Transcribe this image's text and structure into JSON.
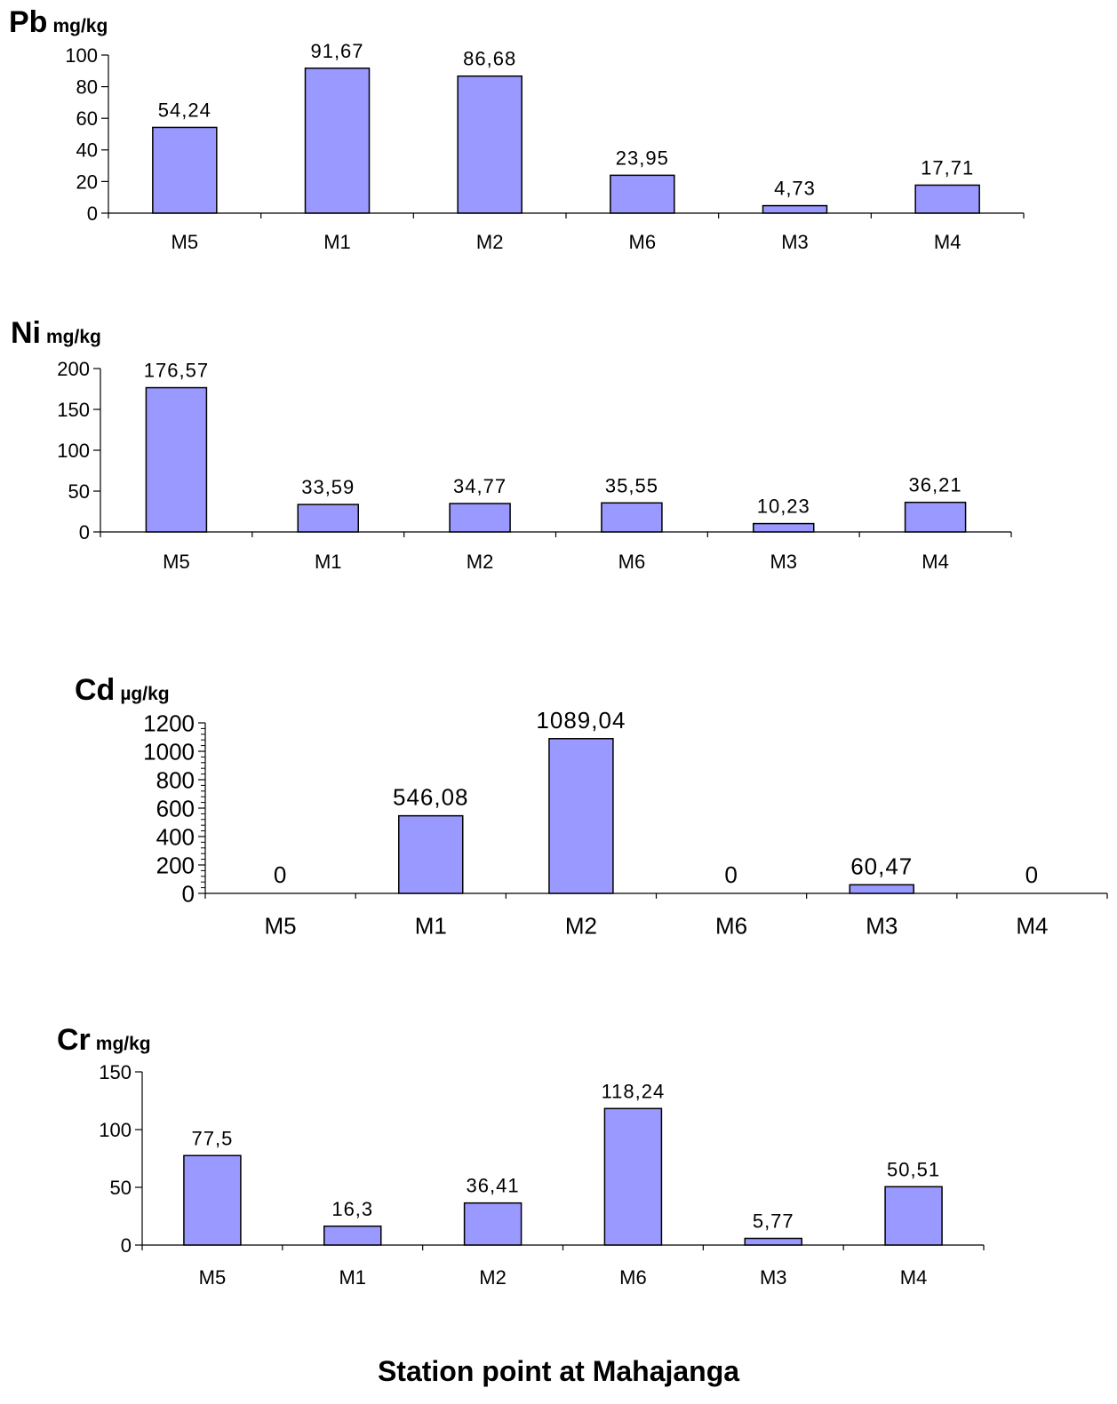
{
  "chart_data": [
    {
      "type": "bar",
      "element": "Pb",
      "unit": "mg/kg",
      "categories": [
        "M5",
        "M1",
        "M2",
        "M6",
        "M3",
        "M4"
      ],
      "values": [
        54.24,
        91.67,
        86.68,
        23.95,
        4.73,
        17.71
      ],
      "value_labels": [
        "54,24",
        "91,67",
        "86,68",
        "23,95",
        "4,73",
        "17,71"
      ],
      "yticks": [
        0,
        20,
        40,
        60,
        80,
        100
      ],
      "ylim": [
        0,
        100
      ],
      "bar_color": "#9999ff"
    },
    {
      "type": "bar",
      "element": "Ni",
      "unit": "mg/kg",
      "categories": [
        "M5",
        "M1",
        "M2",
        "M6",
        "M3",
        "M4"
      ],
      "values": [
        176.57,
        33.59,
        34.77,
        35.55,
        10.23,
        36.21
      ],
      "value_labels": [
        "176,57",
        "33,59",
        "34,77",
        "35,55",
        "10,23",
        "36,21"
      ],
      "yticks": [
        0,
        50,
        100,
        150,
        200
      ],
      "ylim": [
        0,
        200
      ],
      "bar_color": "#9999ff"
    },
    {
      "type": "bar",
      "element": "Cd",
      "unit": "µg/kg",
      "categories": [
        "M5",
        "M1",
        "M2",
        "M6",
        "M3",
        "M4"
      ],
      "values": [
        0,
        546.08,
        1089.04,
        0,
        60.47,
        0
      ],
      "value_labels": [
        "0",
        "546,08",
        "1089,04",
        "0",
        "60,47",
        "0"
      ],
      "yticks": [
        0,
        200,
        400,
        600,
        800,
        1000,
        1200
      ],
      "ylim": [
        0,
        1200
      ],
      "bar_color": "#9999ff"
    },
    {
      "type": "bar",
      "element": "Cr",
      "unit": "mg/kg",
      "categories": [
        "M5",
        "M1",
        "M2",
        "M6",
        "M3",
        "M4"
      ],
      "values": [
        77.5,
        16.3,
        36.41,
        118.24,
        5.77,
        50.51
      ],
      "value_labels": [
        "77,5",
        "16,3",
        "36,41",
        "118,24",
        "5,77",
        "50,51"
      ],
      "yticks": [
        0,
        50,
        100,
        150
      ],
      "ylim": [
        0,
        150
      ],
      "bar_color": "#9999ff"
    }
  ],
  "xlabel": "Station point at Mahajanga"
}
